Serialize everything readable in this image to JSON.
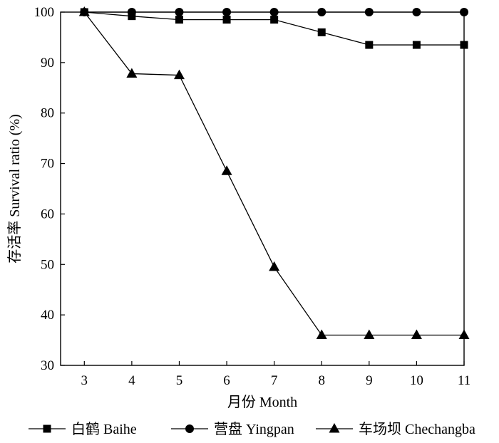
{
  "chart_data": {
    "type": "line",
    "title": "",
    "xlabel": "月份 Month",
    "ylabel": "存活率 Survival ratio (%)",
    "x": [
      3,
      4,
      5,
      6,
      7,
      8,
      9,
      10,
      11
    ],
    "xlim": [
      2.5,
      11
    ],
    "ylim": [
      30,
      100
    ],
    "yticks": [
      30,
      40,
      50,
      60,
      70,
      80,
      90,
      100
    ],
    "grid": false,
    "legend_position": "bottom",
    "series": [
      {
        "name": "白鹤 Baihe",
        "marker": "square",
        "values": [
          100,
          99.2,
          98.5,
          98.5,
          98.5,
          96,
          93.5,
          93.5,
          93.5
        ]
      },
      {
        "name": "营盘 Yingpan",
        "marker": "circle",
        "values": [
          100,
          100,
          100,
          100,
          100,
          100,
          100,
          100,
          100
        ]
      },
      {
        "name": "车场坝 Chechangba",
        "marker": "triangle",
        "values": [
          100,
          87.8,
          87.5,
          68.5,
          49.5,
          36,
          36,
          36,
          36
        ]
      }
    ],
    "line_color": "#000000"
  }
}
